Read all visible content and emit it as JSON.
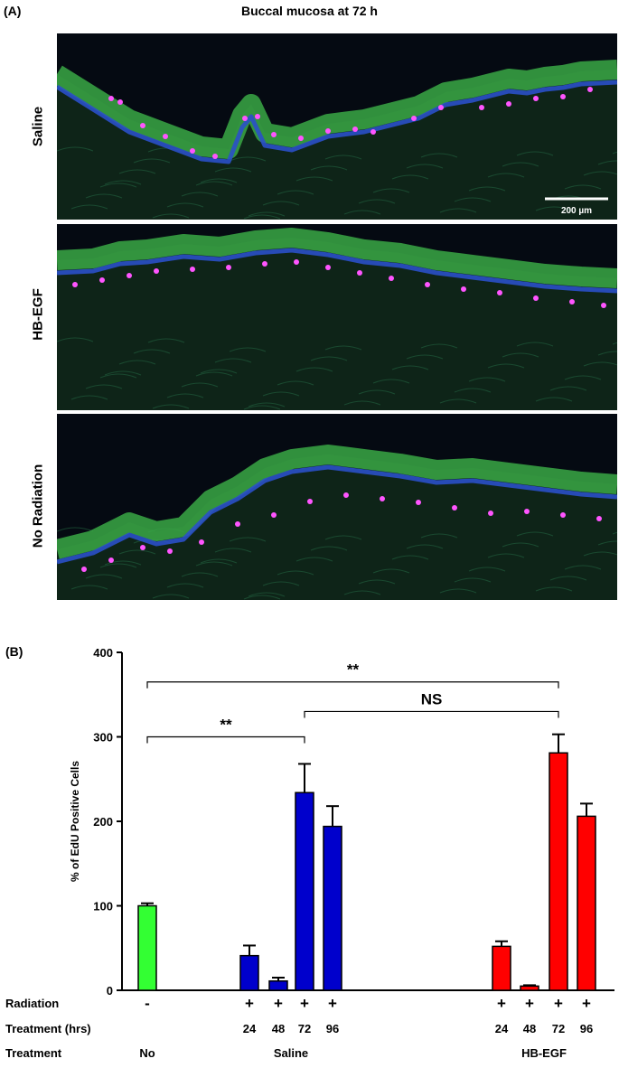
{
  "panel_a": {
    "label": "(A)",
    "title": "Buccal mucosa at 72 h",
    "rows": [
      "Saline",
      "HB-EGF",
      "No Radiation"
    ],
    "scale_bar": "200 µm",
    "colors": {
      "background": "#050a12",
      "epithelium": "#3aa845",
      "nuclei": "#2a50c8",
      "edu": "#ff55ff"
    }
  },
  "panel_b": {
    "label": "(B)",
    "row_headers": [
      "Radiation",
      "Treatment (hrs)",
      "Treatment"
    ]
  },
  "chart_data": {
    "type": "bar",
    "ylabel": "% of EdU Positive Cells",
    "ylim": [
      0,
      400
    ],
    "yticks": [
      0,
      100,
      200,
      300,
      400
    ],
    "bars": [
      {
        "group": "No",
        "radiation": "-",
        "hours": "",
        "value": 100,
        "error": 3,
        "color": "#33ff33"
      },
      {
        "group": "Saline",
        "radiation": "+",
        "hours": "24",
        "value": 41,
        "error": 12,
        "color": "#0000cc"
      },
      {
        "group": "Saline",
        "radiation": "+",
        "hours": "48",
        "value": 11,
        "error": 4,
        "color": "#0000cc"
      },
      {
        "group": "Saline",
        "radiation": "+",
        "hours": "72",
        "value": 234,
        "error": 34,
        "color": "#0000cc"
      },
      {
        "group": "Saline",
        "radiation": "+",
        "hours": "96",
        "value": 194,
        "error": 24,
        "color": "#0000cc"
      },
      {
        "group": "HB-EGF",
        "radiation": "+",
        "hours": "24",
        "value": 52,
        "error": 6,
        "color": "#ff0000"
      },
      {
        "group": "HB-EGF",
        "radiation": "+",
        "hours": "48",
        "value": 5,
        "error": 1,
        "color": "#ff0000"
      },
      {
        "group": "HB-EGF",
        "radiation": "+",
        "hours": "72",
        "value": 281,
        "error": 22,
        "color": "#ff0000"
      },
      {
        "group": "HB-EGF",
        "radiation": "+",
        "hours": "96",
        "value": 206,
        "error": 15,
        "color": "#ff0000"
      }
    ],
    "groups": [
      "No",
      "Saline",
      "HB-EGF"
    ],
    "comparisons": [
      {
        "from_bar": 0,
        "to_bar": 7,
        "label": "**",
        "level": 365
      },
      {
        "from_bar": 3,
        "to_bar": 7,
        "label": "NS",
        "level": 330
      },
      {
        "from_bar": 0,
        "to_bar": 3,
        "label": "**",
        "level": 300
      }
    ]
  }
}
